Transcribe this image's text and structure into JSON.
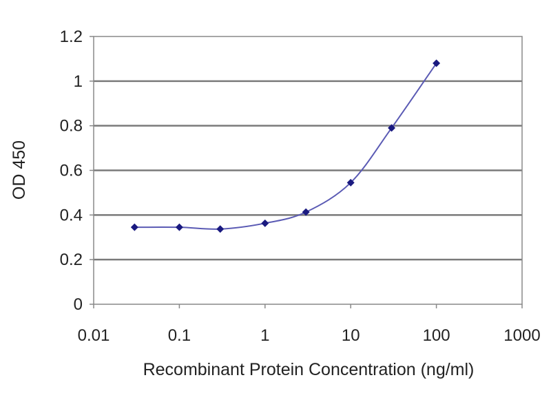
{
  "chart_data": {
    "type": "line",
    "title": "",
    "xlabel": "Recombinant Protein Concentration (ng/ml)",
    "ylabel": "OD 450",
    "xscale": "log",
    "xlim": [
      0.01,
      1000
    ],
    "ylim": [
      0,
      1.2
    ],
    "grid": "horizontal",
    "legend": "none",
    "x_ticks": [
      {
        "value": 0.01,
        "label": "0.01"
      },
      {
        "value": 0.1,
        "label": "0.1"
      },
      {
        "value": 1,
        "label": "1"
      },
      {
        "value": 10,
        "label": "10"
      },
      {
        "value": 100,
        "label": "100"
      },
      {
        "value": 1000,
        "label": "1000"
      }
    ],
    "y_ticks": [
      {
        "value": 0,
        "label": "0"
      },
      {
        "value": 0.2,
        "label": "0.2"
      },
      {
        "value": 0.4,
        "label": "0.4"
      },
      {
        "value": 0.6,
        "label": "0.6"
      },
      {
        "value": 0.8,
        "label": "0.8"
      },
      {
        "value": 1,
        "label": "1"
      },
      {
        "value": 1.2,
        "label": "1.2"
      }
    ],
    "series": [
      {
        "color": "#1a1a80",
        "line_color": "#5a5ab4",
        "marker": "diamond",
        "x": [
          0.03,
          0.1,
          0.3,
          1,
          3,
          10,
          30,
          100
        ],
        "y": [
          0.345,
          0.345,
          0.337,
          0.363,
          0.413,
          0.545,
          0.79,
          1.08
        ]
      }
    ],
    "colors": {
      "grid": "#7a7a7a",
      "frame": "#888888",
      "background": "#ffffff"
    }
  }
}
